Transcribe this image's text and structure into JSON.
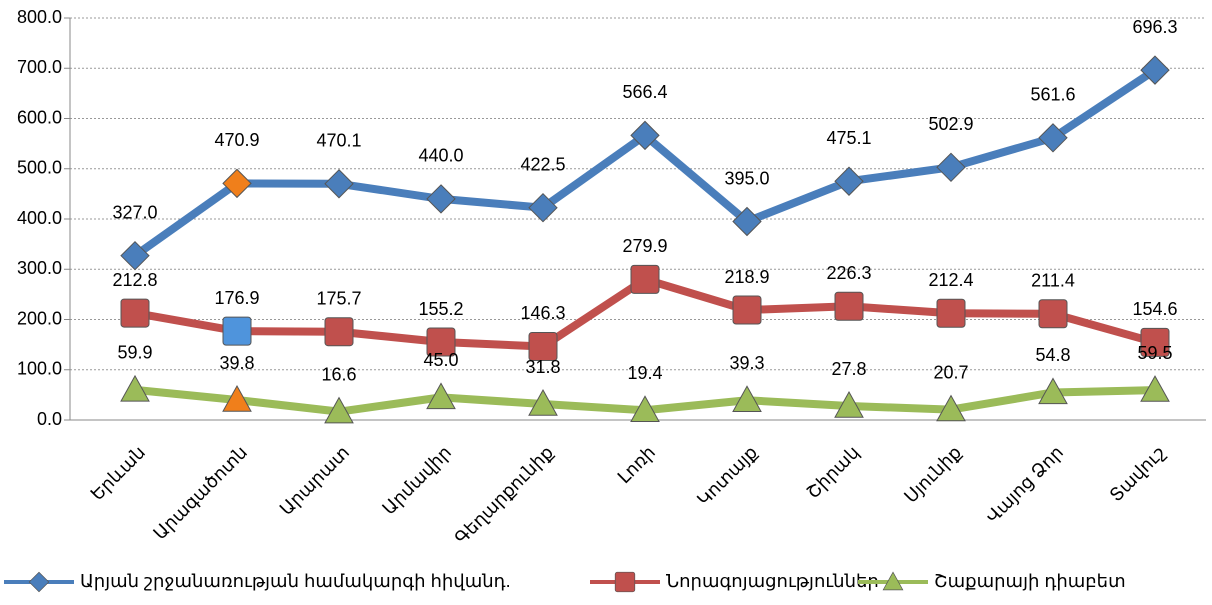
{
  "chart_data": {
    "type": "line",
    "categories": [
      "Երևան",
      "Արագածոտն",
      "Արարատ",
      "Արմավիր",
      "Գեղարքունիք",
      "Լոռի",
      "Կոտայք",
      "Շիրակ",
      "Սյունիք",
      "Վայոց Ձոր",
      "Տավուշ"
    ],
    "series": [
      {
        "name": "Արյան շրջանառության համակարգի հիվանդ.",
        "color": "#4a7ebb",
        "marker": "diamond",
        "highlight": {
          "index": 1,
          "color": "#f07f1b"
        },
        "values": [
          327.0,
          470.9,
          470.1,
          440.0,
          422.5,
          566.4,
          395.0,
          475.1,
          502.9,
          561.6,
          696.3
        ],
        "value_labels": [
          "327.0",
          "470.9",
          "470.1",
          "440.0",
          "422.5",
          "566.4",
          "395.0",
          "475.1",
          "502.9",
          "561.6",
          "696.3"
        ]
      },
      {
        "name": "Նորագոյացություններ",
        "color": "#c0504d",
        "marker": "square",
        "highlight": {
          "index": 1,
          "color": "#4f94dc"
        },
        "values": [
          212.8,
          176.9,
          175.7,
          155.2,
          146.3,
          279.9,
          218.9,
          226.3,
          212.4,
          211.4,
          154.6
        ],
        "value_labels": [
          "212.8",
          "176.9",
          "175.7",
          "155.2",
          "146.3",
          "279.9",
          "218.9",
          "226.3",
          "212.4",
          "211.4",
          "154.6"
        ]
      },
      {
        "name": "Շաքարայի դիաբետ",
        "color": "#9bbb59",
        "marker": "triangle",
        "highlight": {
          "index": 1,
          "color": "#f07f1b"
        },
        "values": [
          59.9,
          39.8,
          16.6,
          45.0,
          31.8,
          19.4,
          39.3,
          27.8,
          20.7,
          54.8,
          59.5
        ],
        "value_labels": [
          "59.9",
          "39.8",
          "16.6",
          "45.0",
          "31.8",
          "19.4",
          "39.3",
          "27.8",
          "20.7",
          "54.8",
          "59.5"
        ]
      }
    ],
    "ylim": [
      0,
      800
    ],
    "yticks": [
      {
        "value": 0,
        "label": "0.0"
      },
      {
        "value": 100,
        "label": "100.0"
      },
      {
        "value": 200,
        "label": "200.0"
      },
      {
        "value": 300,
        "label": "300.0"
      },
      {
        "value": 400,
        "label": "400.0"
      },
      {
        "value": 500,
        "label": "500.0"
      },
      {
        "value": 600,
        "label": "600.0"
      },
      {
        "value": 700,
        "label": "700.0"
      },
      {
        "value": 800,
        "label": "800.0"
      }
    ],
    "grid": true,
    "legend": "bottom"
  }
}
